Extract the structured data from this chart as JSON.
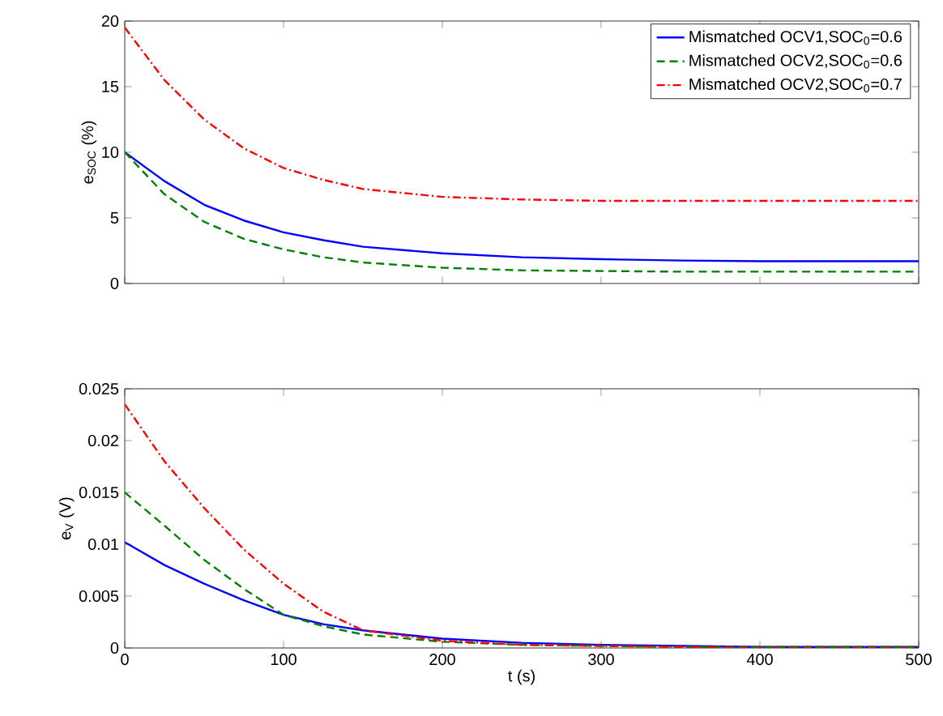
{
  "chart_data": [
    {
      "type": "line",
      "ylabel": "e$_{SOC}$ (%)",
      "xlim": [
        0,
        500
      ],
      "xticks": [
        0,
        100,
        200,
        300,
        400,
        500
      ],
      "ylim": [
        0,
        20
      ],
      "yticks": [
        0,
        5,
        10,
        15,
        20
      ],
      "legend": "top right",
      "tick_labels": "y",
      "x": [
        0,
        25,
        50,
        75,
        100,
        125,
        150,
        200,
        250,
        300,
        350,
        400,
        450,
        500
      ],
      "series": [
        {
          "name": "Mismatched OCV1,SOC$_{0}$=0.6",
          "color": "#0000ff",
          "line_style": "solid",
          "values": [
            10,
            7.8,
            6.0,
            4.8,
            3.9,
            3.3,
            2.8,
            2.3,
            2.0,
            1.85,
            1.75,
            1.7,
            1.7,
            1.7
          ]
        },
        {
          "name": "Mismatched OCV2,SOC$_{0}$=0.6",
          "color": "#008000",
          "line_style": "dashed",
          "values": [
            10,
            6.8,
            4.7,
            3.4,
            2.6,
            2.0,
            1.6,
            1.2,
            1.0,
            0.95,
            0.9,
            0.9,
            0.9,
            0.9
          ]
        },
        {
          "name": "Mismatched OCV2,SOC$_{0}$=0.7",
          "color": "#ff0000",
          "line_style": "dashdot",
          "values": [
            19.5,
            15.5,
            12.5,
            10.3,
            8.8,
            7.9,
            7.2,
            6.6,
            6.4,
            6.3,
            6.3,
            6.3,
            6.3,
            6.3
          ]
        }
      ]
    },
    {
      "type": "line",
      "xlabel": "t (s)",
      "ylabel": "e$_{V}$ (V)",
      "xlim": [
        0,
        500
      ],
      "xticks": [
        0,
        100,
        200,
        300,
        400,
        500
      ],
      "ylim": [
        0,
        0.025
      ],
      "yticks": [
        0,
        0.005,
        0.01,
        0.015,
        0.02,
        0.025
      ],
      "x": [
        0,
        25,
        50,
        75,
        100,
        125,
        150,
        200,
        250,
        300,
        350,
        400,
        450,
        500
      ],
      "series": [
        {
          "color": "#0000ff",
          "line_style": "solid",
          "values": [
            0.0102,
            0.008,
            0.0062,
            0.0046,
            0.0032,
            0.0023,
            0.0017,
            0.0009,
            0.0005,
            0.0003,
            0.0002,
            0.0001,
            0.0001,
            0.0001
          ]
        },
        {
          "color": "#008000",
          "line_style": "dashed",
          "values": [
            0.015,
            0.0118,
            0.0085,
            0.0057,
            0.0032,
            0.0021,
            0.0013,
            0.0006,
            0.0003,
            0.0002,
            0.0001,
            0.0001,
            0.0001,
            0.0001
          ]
        },
        {
          "color": "#ff0000",
          "line_style": "dashdot",
          "values": [
            0.0235,
            0.018,
            0.0135,
            0.0095,
            0.0062,
            0.0035,
            0.0017,
            0.0007,
            0.0003,
            0.0002,
            0.0001,
            0,
            0,
            0
          ]
        }
      ]
    }
  ]
}
